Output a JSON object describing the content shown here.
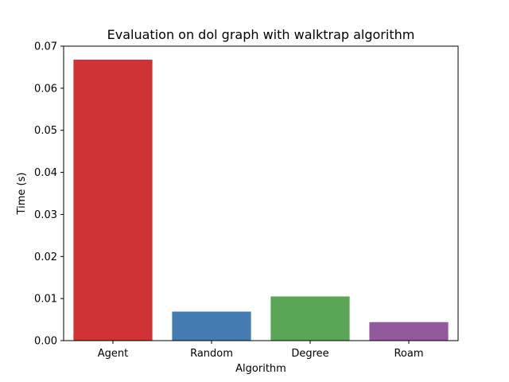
{
  "chart_data": {
    "type": "bar",
    "title": "Evaluation on dol graph with walktrap algorithm",
    "xlabel": "Algorithm",
    "ylabel": "Time (s)",
    "ylim": [
      0,
      0.07
    ],
    "grid": false,
    "categories": [
      "Agent",
      "Random",
      "Degree",
      "Roam"
    ],
    "values": [
      0.0668,
      0.0069,
      0.0105,
      0.0044
    ],
    "colors": [
      "#d03235",
      "#447bb0",
      "#5aa556",
      "#925a9d"
    ],
    "yticks": [
      "0.00",
      "0.01",
      "0.02",
      "0.03",
      "0.04",
      "0.05",
      "0.06",
      "0.07"
    ]
  }
}
